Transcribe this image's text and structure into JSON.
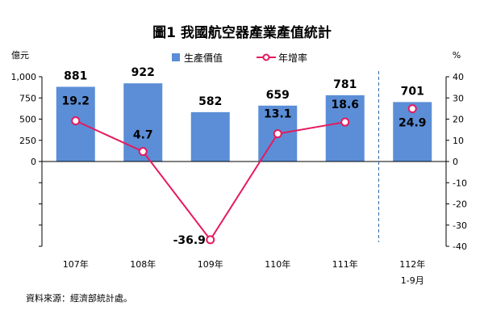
{
  "chart_data": {
    "type": "bar+line",
    "title": "圖1 我國航空器產業產值統計",
    "left_unit": "億元",
    "right_unit": "%",
    "categories": [
      "107年",
      "108年",
      "109年",
      "110年",
      "111年",
      "112年"
    ],
    "category_sublabels": [
      "",
      "",
      "",
      "",
      "",
      "1-9月"
    ],
    "left_axis": {
      "ylim": [
        -1000,
        1000
      ],
      "ticks": [
        0,
        250,
        500,
        750,
        1000
      ],
      "tick_labels": [
        "0",
        "250",
        "500",
        "750",
        "1,000"
      ]
    },
    "right_axis": {
      "ylim": [
        -40,
        40
      ],
      "ticks": [
        -40,
        -30,
        -20,
        -10,
        0,
        10,
        20,
        30,
        40
      ],
      "tick_labels": [
        "-40",
        "-30",
        "-20",
        "-10",
        "0",
        "10",
        "20",
        "30",
        "40"
      ]
    },
    "series": [
      {
        "name": "生產價值",
        "type": "bar",
        "axis": "left",
        "color": "#5b8ed6",
        "values": [
          881,
          922,
          582,
          659,
          781,
          701
        ],
        "labels": [
          "881",
          "922",
          "582",
          "659",
          "781",
          "701"
        ]
      },
      {
        "name": "年增率",
        "type": "line",
        "axis": "right",
        "color": "#e6195e",
        "values": [
          19.2,
          4.7,
          -36.9,
          13.1,
          18.6,
          24.9
        ],
        "labels": [
          "19.2",
          "4.7",
          "-36.9",
          "13.1",
          "18.6",
          "24.9"
        ],
        "connected_count": 5
      }
    ],
    "legend_position": "top",
    "grid": false,
    "divider_after_index": 4
  },
  "source": "資料來源：經濟部統計處。"
}
